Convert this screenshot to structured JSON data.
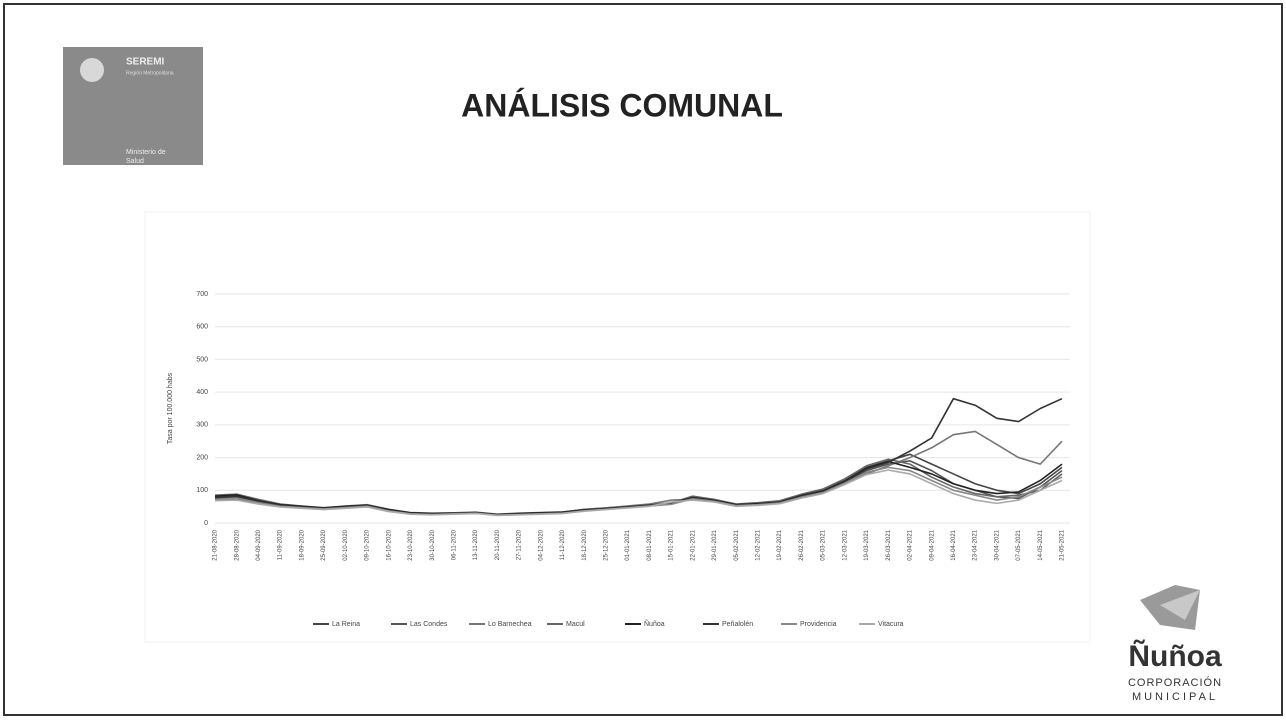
{
  "header": {
    "logo": {
      "title": "SEREMI",
      "subtitle": "Región Metropolitana",
      "ministry_lines": [
        "Ministerio de",
        "Salud"
      ]
    },
    "title": "ANÁLISIS COMUNAL"
  },
  "chart_data": {
    "type": "line",
    "y_label": "Tasa por 100.000 habs",
    "categories": [
      "21-08-2020",
      "28-08-2020",
      "04-09-2020",
      "11-09-2020",
      "18-09-2020",
      "25-09-2020",
      "02-10-2020",
      "09-10-2020",
      "16-10-2020",
      "23-10-2020",
      "30-10-2020",
      "06-11-2020",
      "13-11-2020",
      "20-11-2020",
      "27-11-2020",
      "04-12-2020",
      "11-12-2020",
      "18-12-2020",
      "25-12-2020",
      "01-01-2021",
      "08-01-2021",
      "15-01-2021",
      "22-01-2021",
      "29-01-2021",
      "05-02-2021",
      "12-02-2021",
      "19-02-2021",
      "26-02-2021",
      "05-03-2021",
      "12-03-2021",
      "19-03-2021",
      "26-03-2021",
      "02-04-2021",
      "09-04-2021",
      "16-04-2021",
      "23-04-2021",
      "30-04-2021",
      "07-05-2021",
      "14-05-2021",
      "21-05-2021"
    ],
    "series": [
      {
        "name": "La Reina",
        "color": "#444444",
        "values": [
          80,
          85,
          70,
          55,
          50,
          45,
          50,
          55,
          40,
          30,
          28,
          30,
          32,
          25,
          28,
          30,
          32,
          40,
          45,
          50,
          55,
          60,
          80,
          70,
          55,
          60,
          65,
          85,
          100,
          130,
          170,
          190,
          210,
          180,
          150,
          120,
          100,
          90,
          120,
          170
        ]
      },
      {
        "name": "Las Condes",
        "color": "#555555",
        "values": [
          75,
          80,
          65,
          50,
          48,
          42,
          48,
          52,
          38,
          28,
          26,
          28,
          30,
          24,
          26,
          28,
          30,
          38,
          42,
          48,
          52,
          58,
          75,
          68,
          52,
          58,
          62,
          80,
          95,
          125,
          160,
          180,
          190,
          160,
          120,
          100,
          80,
          75,
          110,
          160
        ]
      },
      {
        "name": "Lo Barnechea",
        "color": "#777777",
        "values": [
          70,
          72,
          60,
          52,
          46,
          44,
          46,
          50,
          36,
          30,
          27,
          29,
          31,
          25,
          27,
          30,
          33,
          42,
          46,
          52,
          58,
          70,
          72,
          66,
          54,
          56,
          60,
          78,
          92,
          118,
          150,
          175,
          200,
          230,
          270,
          280,
          240,
          200,
          180,
          250
        ]
      },
      {
        "name": "Macul",
        "color": "#666666",
        "values": [
          85,
          88,
          72,
          58,
          52,
          47,
          52,
          56,
          42,
          32,
          30,
          31,
          33,
          27,
          30,
          32,
          34,
          41,
          46,
          51,
          56,
          62,
          82,
          72,
          58,
          62,
          68,
          88,
          104,
          135,
          175,
          195,
          180,
          140,
          110,
          90,
          80,
          85,
          100,
          150
        ]
      },
      {
        "name": "Ñuñoa",
        "color": "#222222",
        "values": [
          82,
          86,
          68,
          56,
          51,
          46,
          51,
          54,
          41,
          31,
          29,
          30,
          32,
          26,
          29,
          31,
          33,
          40,
          44,
          49,
          54,
          60,
          78,
          69,
          56,
          59,
          64,
          84,
          98,
          128,
          168,
          188,
          170,
          150,
          120,
          100,
          90,
          95,
          130,
          180
        ]
      },
      {
        "name": "Peñalolén",
        "color": "#333333",
        "values": [
          78,
          82,
          66,
          54,
          49,
          44,
          49,
          53,
          39,
          29,
          27,
          29,
          31,
          25,
          27,
          29,
          31,
          39,
          43,
          48,
          53,
          58,
          76,
          67,
          54,
          57,
          63,
          82,
          96,
          126,
          165,
          185,
          220,
          260,
          380,
          360,
          320,
          310,
          350,
          380
        ]
      },
      {
        "name": "Providencia",
        "color": "#888888",
        "values": [
          72,
          76,
          62,
          51,
          47,
          43,
          47,
          51,
          37,
          28,
          26,
          28,
          30,
          24,
          26,
          28,
          30,
          37,
          42,
          47,
          52,
          57,
          74,
          66,
          53,
          56,
          61,
          79,
          93,
          122,
          155,
          170,
          160,
          130,
          100,
          85,
          70,
          80,
          110,
          140
        ]
      },
      {
        "name": "Vitacura",
        "color": "#aaaaaa",
        "values": [
          68,
          70,
          58,
          49,
          45,
          41,
          45,
          49,
          35,
          27,
          25,
          27,
          29,
          23,
          25,
          27,
          29,
          36,
          41,
          46,
          51,
          64,
          70,
          64,
          51,
          54,
          59,
          76,
          90,
          118,
          148,
          162,
          150,
          120,
          90,
          70,
          60,
          70,
          100,
          130
        ]
      }
    ],
    "ylim": [
      0,
      700
    ],
    "yticks": [
      0,
      100,
      200,
      300,
      400,
      500,
      600,
      700
    ],
    "grid": true,
    "legend": "bottom"
  },
  "footer_logo": {
    "name": "Ñuñoa",
    "line1": "CORPORACIÓN",
    "line2": "MUNICIPAL"
  }
}
